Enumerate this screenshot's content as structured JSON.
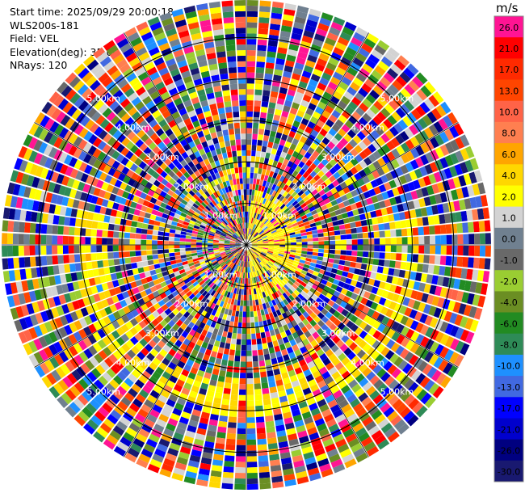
{
  "header": {
    "start_time": "Start time: 2025/09/29 20:00:18",
    "instrument": "WLS200s-181",
    "field": "Field: VEL",
    "elevation": "Elevation(deg): 35.00",
    "nrays": "NRays: 120"
  },
  "chart_data": {
    "type": "heatmap",
    "projection": "polar PPI",
    "field": "VEL",
    "unit": "m/s",
    "n_rays": 120,
    "elevation_deg": 35.0,
    "range_rings_km": [
      1.0,
      2.0,
      3.0,
      4.0,
      5.0
    ],
    "ring_labels": [
      "1.00km",
      "2.00km",
      "3.00km",
      "4.00km",
      "5.00km"
    ],
    "max_range_km": 5.9,
    "colorbar": {
      "title": "m/s",
      "ticks": [
        "26.0",
        "21.0",
        "17.0",
        "13.0",
        "10.0",
        "8.0",
        "6.0",
        "4.0",
        "2.0",
        "1.0",
        "0.0",
        "-1.0",
        "-2.0",
        "-4.0",
        "-6.0",
        "-8.0",
        "-10.0",
        "-13.0",
        "-17.0",
        "-21.0",
        "-26.0",
        "-30.0"
      ],
      "colors": [
        "#ff1493",
        "#ff0000",
        "#ff2a00",
        "#ff4500",
        "#ff6347",
        "#ff7f50",
        "#ffa500",
        "#ffd700",
        "#ffff00",
        "#d3d3d3",
        "#708090",
        "#696969",
        "#9acd32",
        "#6b8e23",
        "#228b22",
        "#2e8b57",
        "#1e90ff",
        "#4169e1",
        "#0000ff",
        "#0000cd",
        "#000080",
        "#191970"
      ]
    }
  }
}
